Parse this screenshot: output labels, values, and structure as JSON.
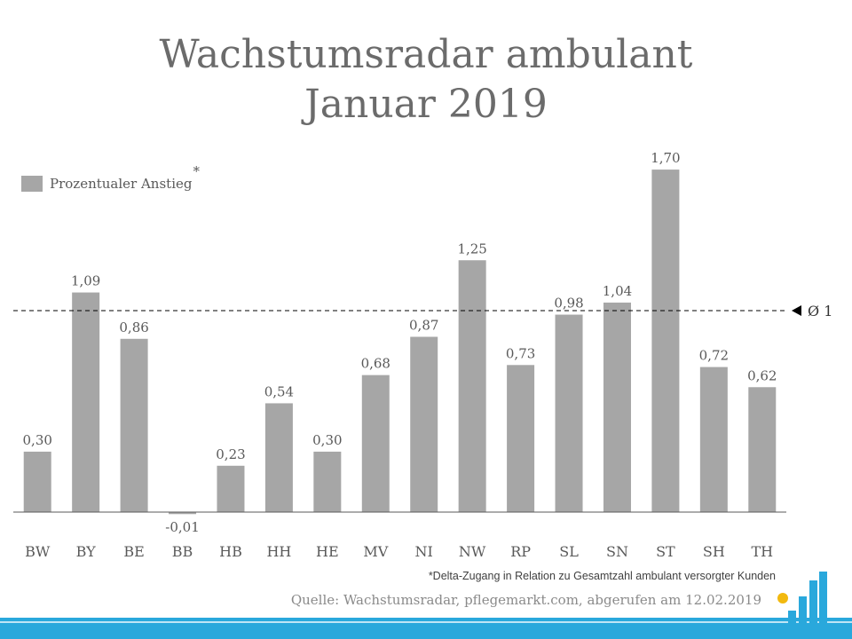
{
  "title_line1": "Wachstumsradar ambulant",
  "title_line2": "Januar 2019",
  "legend": {
    "label": "Prozentualer Anstieg",
    "marker": "*"
  },
  "footnote": "*Delta-Zugang in Relation zu Gesamtzahl ambulant versorgter Kunden",
  "source": "Quelle: Wachstumsradar, pflegemarkt.com, abgerufen am 12.02.2019",
  "colors": {
    "bar": "#a6a6a6",
    "text": "#595959",
    "title": "#6b6b6b",
    "accent": "#29a8dc"
  },
  "chart_data": {
    "type": "bar",
    "title": "Wachstumsradar ambulant Januar 2019",
    "categories": [
      "BW",
      "BY",
      "BE",
      "BB",
      "HB",
      "HH",
      "HE",
      "MV",
      "NI",
      "NW",
      "RP",
      "SL",
      "SN",
      "ST",
      "SH",
      "TH"
    ],
    "values": [
      0.3,
      1.09,
      0.86,
      -0.01,
      0.23,
      0.54,
      0.3,
      0.68,
      0.87,
      1.25,
      0.73,
      0.98,
      1.04,
      1.7,
      0.72,
      0.62
    ],
    "value_labels": [
      "0,30",
      "1,09",
      "0,86",
      "-0,01",
      "0,23",
      "0,54",
      "0,30",
      "0,68",
      "0,87",
      "1,25",
      "0,73",
      "0,98",
      "1,04",
      "1,70",
      "0,72",
      "0,62"
    ],
    "series": [
      {
        "name": "Prozentualer Anstieg"
      }
    ],
    "reference_line": {
      "value": 1,
      "label": "Ø 1",
      "style": "dashed"
    },
    "xlabel": "",
    "ylabel": "",
    "ylim": [
      -0.01,
      1.7
    ],
    "grid": false,
    "legend_position": "top-left"
  }
}
